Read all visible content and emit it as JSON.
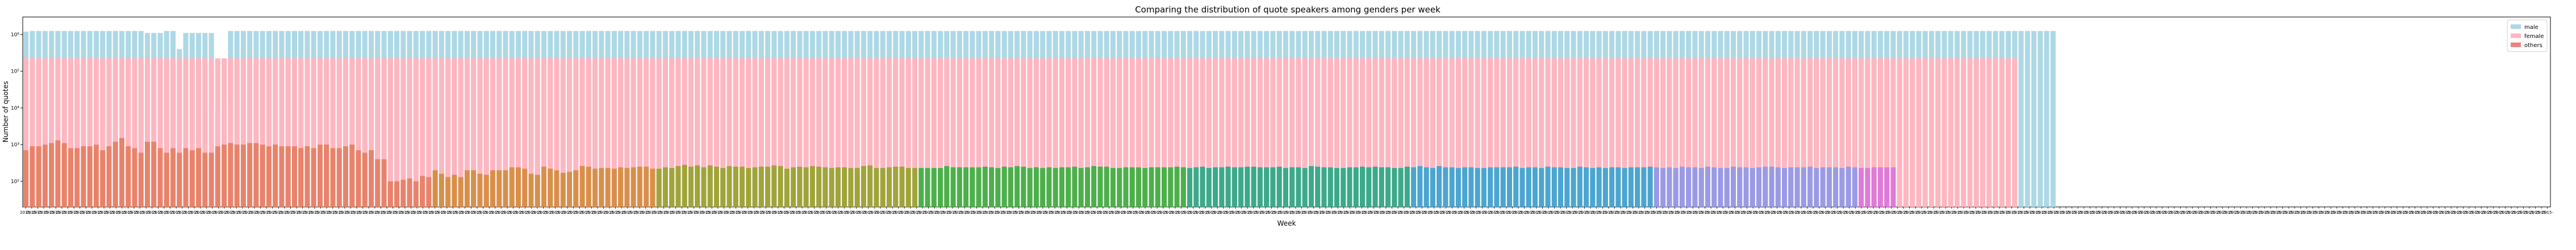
{
  "chart_data": {
    "type": "bar",
    "title": "Comparing the distribution of quote speakers among genders per week",
    "xlabel": "Week",
    "ylabel": "Number of quotes",
    "yscale": "log",
    "ylim": [
      20,
      3000000
    ],
    "ytick_values": [
      100,
      1000,
      10000,
      100000,
      1000000
    ],
    "ytick_labels": [
      "10²",
      "10³",
      "10⁴",
      "10⁵",
      "10⁶"
    ],
    "xtick_label": "2015-",
    "overlay": true,
    "legend_position": "top-right",
    "series": [
      {
        "name": "male",
        "color": "#add8e6",
        "values": [
          1200000,
          1250000,
          1250000,
          1250000,
          1250000,
          1250000,
          1250000,
          1250000,
          1250000,
          1250000,
          1250000,
          1250000,
          1250000,
          1250000,
          1250000,
          1250000,
          1250000,
          1250000,
          1250000,
          1100000,
          1100000,
          1100000,
          1250000,
          1250000,
          400000,
          1100000,
          1100000,
          1100000,
          1100000,
          1100000,
          9000,
          9000,
          1250000,
          1250000,
          1250000,
          1250000,
          1250000,
          1250000,
          1250000,
          1250000,
          1250000,
          1250000,
          1250000,
          1250000,
          1250000,
          1250000,
          1250000,
          1250000,
          1250000,
          1250000,
          1250000,
          1250000,
          1250000,
          1250000,
          1250000,
          1250000,
          1250000,
          1250000,
          1250000,
          1250000,
          1250000,
          1250000,
          1250000,
          1250000,
          1250000,
          1250000,
          1250000,
          1250000,
          1250000,
          1250000,
          1250000,
          1250000,
          1250000,
          1250000,
          1250000,
          1250000,
          1250000,
          1250000,
          1250000,
          1250000,
          1250000,
          1250000,
          1250000,
          1250000,
          1250000,
          1250000,
          1250000,
          1250000,
          1250000,
          1250000,
          1250000,
          1250000,
          1250000,
          1250000,
          1250000,
          1250000,
          1250000,
          1250000,
          1250000,
          1250000,
          1250000,
          1250000,
          1250000,
          1250000,
          1250000,
          1250000,
          1250000,
          1250000,
          1250000,
          1250000,
          1250000,
          1250000,
          1250000,
          1250000,
          1250000,
          1250000,
          1250000,
          1250000,
          1250000,
          1250000,
          1250000,
          1250000,
          1250000,
          1250000,
          1250000,
          1250000,
          1250000,
          1250000,
          1250000,
          1250000,
          1250000,
          1250000,
          1250000,
          1250000,
          1250000,
          1250000,
          1250000,
          1250000,
          1250000,
          1250000,
          1250000,
          1250000,
          1250000,
          1250000,
          1250000,
          1250000,
          1250000,
          1250000,
          1250000,
          1250000,
          1250000,
          1250000,
          1250000,
          1250000,
          1250000,
          1250000,
          1250000,
          1250000,
          1250000,
          1250000,
          1250000,
          1250000,
          1250000,
          1250000,
          1250000,
          1250000,
          1250000,
          1250000,
          1250000,
          1250000,
          1250000,
          1250000,
          1250000,
          1250000,
          1250000,
          1250000,
          1250000,
          1250000,
          1250000,
          1250000,
          1250000,
          1250000,
          1250000,
          1250000,
          1250000,
          1250000,
          1250000,
          1250000,
          1250000,
          1250000,
          1250000,
          1250000,
          1250000,
          1250000,
          1250000,
          1250000,
          1250000,
          1250000,
          1250000,
          1250000,
          1250000,
          1250000,
          1250000,
          1250000,
          1250000,
          1250000,
          1250000,
          1250000,
          1250000,
          1250000,
          1250000,
          1250000,
          1250000,
          1250000,
          1250000,
          1250000,
          1250000,
          1250000,
          1250000,
          1250000,
          1250000,
          1250000,
          1250000,
          1250000,
          1250000,
          1250000,
          1250000,
          1250000,
          1250000,
          1250000,
          1250000,
          1250000,
          1250000,
          1250000,
          1250000,
          1250000,
          1250000,
          1250000,
          1250000,
          1250000,
          1250000,
          1250000,
          1250000,
          1250000,
          1250000,
          1250000,
          1250000,
          1250000,
          1250000,
          1250000,
          1250000,
          1250000,
          1250000,
          1250000,
          1250000,
          1250000,
          1250000,
          1250000,
          1250000,
          1250000,
          1250000,
          1250000,
          1250000,
          1250000,
          1250000,
          1250000,
          1250000,
          1250000,
          1250000,
          1250000,
          1250000,
          1250000,
          1250000,
          1250000,
          1250000,
          1250000,
          1250000,
          1250000,
          1250000,
          1250000,
          1250000,
          1250000,
          1250000,
          1250000,
          1250000,
          1250000,
          1250000,
          1250000,
          1250000,
          1250000,
          1250000,
          1250000,
          1250000,
          1250000,
          1250000,
          1250000,
          1250000,
          1250000,
          1250000,
          1250000,
          1250000,
          1250000,
          1250000,
          1250000,
          1250000,
          1250000,
          1250000,
          1250000,
          1250000,
          1250000,
          1250000,
          1250000,
          1250000,
          1250000,
          1250000,
          1250000,
          1250000,
          1250000
        ]
      },
      {
        "name": "female",
        "color": "#ffb6c1",
        "values": [
          225000,
          225000,
          225000,
          225000,
          225000,
          225000,
          225000,
          225000,
          225000,
          225000,
          225000,
          225000,
          225000,
          225000,
          225000,
          225000,
          225000,
          225000,
          225000,
          225000,
          225000,
          225000,
          225000,
          225000,
          225000,
          225000,
          225000,
          225000,
          225000,
          225000,
          225000,
          225000,
          225000,
          225000,
          225000,
          225000,
          225000,
          225000,
          225000,
          225000,
          225000,
          225000,
          225000,
          225000,
          225000,
          225000,
          225000,
          225000,
          225000,
          225000,
          225000,
          225000,
          225000,
          225000,
          225000,
          225000,
          225000,
          225000,
          225000,
          225000,
          225000,
          225000,
          225000,
          225000,
          225000,
          225000,
          225000,
          225000,
          225000,
          225000,
          225000,
          225000,
          225000,
          225000,
          225000,
          225000,
          225000,
          225000,
          225000,
          225000,
          225000,
          225000,
          225000,
          225000,
          225000,
          225000,
          225000,
          225000,
          225000,
          225000,
          225000,
          225000,
          225000,
          225000,
          225000,
          225000,
          225000,
          225000,
          225000,
          225000,
          225000,
          225000,
          225000,
          225000,
          225000,
          225000,
          225000,
          225000,
          225000,
          225000,
          225000,
          225000,
          225000,
          225000,
          225000,
          225000,
          225000,
          225000,
          225000,
          225000,
          225000,
          225000,
          225000,
          225000,
          225000,
          225000,
          225000,
          225000,
          225000,
          225000,
          225000,
          225000,
          225000,
          225000,
          225000,
          225000,
          225000,
          225000,
          225000,
          225000,
          225000,
          225000,
          225000,
          225000,
          225000,
          225000,
          225000,
          225000,
          225000,
          225000,
          225000,
          225000,
          225000,
          225000,
          225000,
          225000,
          225000,
          225000,
          225000,
          225000,
          225000,
          225000,
          225000,
          225000,
          225000,
          225000,
          225000,
          225000,
          225000,
          225000,
          225000,
          225000,
          225000,
          225000,
          225000,
          225000,
          225000,
          225000,
          225000,
          225000,
          225000,
          225000,
          225000,
          225000,
          225000,
          225000,
          225000,
          225000,
          225000,
          225000,
          225000,
          225000,
          225000,
          225000,
          225000,
          225000,
          225000,
          225000,
          225000,
          225000,
          225000,
          225000,
          225000,
          225000,
          225000,
          225000,
          225000,
          225000,
          225000,
          225000,
          225000,
          225000,
          225000,
          225000,
          225000,
          225000,
          225000,
          225000,
          225000,
          225000,
          225000,
          225000,
          225000,
          225000,
          225000,
          225000,
          225000,
          225000,
          225000,
          225000,
          225000,
          225000,
          225000,
          225000,
          225000,
          225000,
          225000,
          225000,
          225000,
          225000,
          225000,
          225000,
          225000,
          225000,
          225000,
          225000,
          225000,
          225000,
          225000,
          225000,
          225000,
          225000,
          225000,
          225000,
          225000,
          225000,
          225000,
          225000,
          225000,
          225000,
          225000,
          225000,
          225000,
          225000,
          225000,
          225000,
          225000,
          225000,
          225000,
          225000,
          225000,
          225000,
          225000,
          225000,
          225000,
          225000,
          225000,
          225000,
          225000,
          225000,
          225000,
          225000,
          225000,
          225000,
          225000,
          225000,
          225000,
          225000,
          225000,
          225000,
          225000,
          225000,
          225000,
          225000,
          225000,
          225000,
          225000,
          225000,
          225000,
          225000,
          225000,
          225000,
          225000,
          225000,
          225000,
          225000,
          225000,
          225000,
          225000,
          225000,
          225000,
          225000
        ]
      },
      {
        "name": "others",
        "color": "#f08080",
        "values": [
          700,
          900,
          900,
          1000,
          1100,
          1300,
          1100,
          800,
          800,
          900,
          900,
          1000,
          700,
          900,
          1200,
          1500,
          900,
          800,
          600,
          1200,
          1200,
          800,
          600,
          800,
          600,
          800,
          700,
          800,
          600,
          600,
          900,
          1000,
          1100,
          1000,
          1000,
          1100,
          1100,
          1000,
          900,
          1000,
          900,
          900,
          900,
          800,
          900,
          800,
          1000,
          1000,
          800,
          800,
          900,
          1000,
          700,
          600,
          700,
          400,
          400,
          100,
          100,
          110,
          120,
          100,
          140,
          130,
          200,
          160,
          130,
          150,
          130,
          200,
          200,
          160,
          150,
          200,
          200,
          200,
          240,
          240,
          220,
          160,
          150,
          250,
          220,
          200,
          170,
          180,
          200,
          260,
          250,
          220,
          230,
          230,
          220,
          240,
          230,
          240,
          250,
          250,
          220,
          220,
          240,
          230,
          260,
          280,
          250,
          270,
          240,
          270,
          250,
          230,
          260,
          250,
          250,
          230,
          240,
          250,
          250,
          270,
          260,
          220,
          240,
          250,
          240,
          260,
          250,
          240,
          230,
          240,
          240,
          230,
          230,
          260,
          270,
          230,
          230,
          240,
          250,
          250,
          230,
          230,
          230,
          230,
          230,
          230,
          260,
          240,
          240,
          240,
          240,
          240,
          250,
          240,
          230,
          250,
          240,
          260,
          250,
          230,
          240,
          230,
          240,
          230,
          240,
          240,
          250,
          230,
          240,
          260,
          250,
          250,
          230,
          230,
          240,
          240,
          240,
          230,
          240,
          240,
          240,
          240,
          250,
          240,
          230,
          240,
          250,
          230,
          240,
          240,
          250,
          240,
          240,
          250,
          250,
          240,
          240,
          240,
          250,
          230,
          240,
          240,
          230,
          260,
          250,
          240,
          240,
          230,
          230,
          240,
          240,
          250,
          240,
          250,
          240,
          240,
          230,
          230,
          250,
          240,
          260,
          240,
          230,
          260,
          240,
          240,
          230,
          240,
          240,
          230,
          230,
          240,
          240,
          240,
          240,
          250,
          230,
          240,
          240,
          230,
          250,
          240,
          240,
          230,
          230,
          250,
          240,
          230,
          240,
          230,
          240,
          240,
          230,
          240,
          240,
          240,
          250,
          240,
          230,
          240,
          230,
          250,
          240,
          240,
          230,
          250,
          240,
          230,
          230,
          250,
          240,
          240,
          230,
          240,
          250,
          250,
          240,
          230,
          240,
          240,
          240,
          250,
          230,
          240,
          240,
          240,
          230,
          250,
          240,
          230,
          230,
          240,
          240,
          240,
          240
        ]
      }
    ]
  }
}
